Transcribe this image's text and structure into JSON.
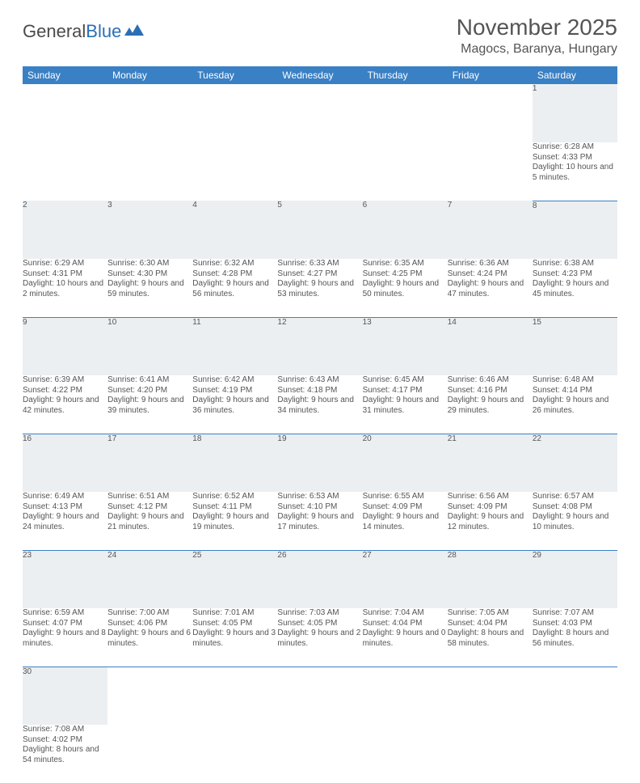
{
  "logo": {
    "text1": "General",
    "text2": "Blue"
  },
  "title": "November 2025",
  "location": "Magocs, Baranya, Hungary",
  "colors": {
    "header_bg": "#3a80c4",
    "header_fg": "#ffffff",
    "daynum_bg": "#eceff1",
    "rule": "#3a80c4",
    "text": "#555555",
    "logo_blue": "#2a6fb5"
  },
  "day_headers": [
    "Sunday",
    "Monday",
    "Tuesday",
    "Wednesday",
    "Thursday",
    "Friday",
    "Saturday"
  ],
  "weeks": [
    [
      null,
      null,
      null,
      null,
      null,
      null,
      {
        "n": "1",
        "sr": "6:28 AM",
        "ss": "4:33 PM",
        "dl": "10 hours and 5 minutes."
      }
    ],
    [
      {
        "n": "2",
        "sr": "6:29 AM",
        "ss": "4:31 PM",
        "dl": "10 hours and 2 minutes."
      },
      {
        "n": "3",
        "sr": "6:30 AM",
        "ss": "4:30 PM",
        "dl": "9 hours and 59 minutes."
      },
      {
        "n": "4",
        "sr": "6:32 AM",
        "ss": "4:28 PM",
        "dl": "9 hours and 56 minutes."
      },
      {
        "n": "5",
        "sr": "6:33 AM",
        "ss": "4:27 PM",
        "dl": "9 hours and 53 minutes."
      },
      {
        "n": "6",
        "sr": "6:35 AM",
        "ss": "4:25 PM",
        "dl": "9 hours and 50 minutes."
      },
      {
        "n": "7",
        "sr": "6:36 AM",
        "ss": "4:24 PM",
        "dl": "9 hours and 47 minutes."
      },
      {
        "n": "8",
        "sr": "6:38 AM",
        "ss": "4:23 PM",
        "dl": "9 hours and 45 minutes."
      }
    ],
    [
      {
        "n": "9",
        "sr": "6:39 AM",
        "ss": "4:22 PM",
        "dl": "9 hours and 42 minutes."
      },
      {
        "n": "10",
        "sr": "6:41 AM",
        "ss": "4:20 PM",
        "dl": "9 hours and 39 minutes."
      },
      {
        "n": "11",
        "sr": "6:42 AM",
        "ss": "4:19 PM",
        "dl": "9 hours and 36 minutes."
      },
      {
        "n": "12",
        "sr": "6:43 AM",
        "ss": "4:18 PM",
        "dl": "9 hours and 34 minutes."
      },
      {
        "n": "13",
        "sr": "6:45 AM",
        "ss": "4:17 PM",
        "dl": "9 hours and 31 minutes."
      },
      {
        "n": "14",
        "sr": "6:46 AM",
        "ss": "4:16 PM",
        "dl": "9 hours and 29 minutes."
      },
      {
        "n": "15",
        "sr": "6:48 AM",
        "ss": "4:14 PM",
        "dl": "9 hours and 26 minutes."
      }
    ],
    [
      {
        "n": "16",
        "sr": "6:49 AM",
        "ss": "4:13 PM",
        "dl": "9 hours and 24 minutes."
      },
      {
        "n": "17",
        "sr": "6:51 AM",
        "ss": "4:12 PM",
        "dl": "9 hours and 21 minutes."
      },
      {
        "n": "18",
        "sr": "6:52 AM",
        "ss": "4:11 PM",
        "dl": "9 hours and 19 minutes."
      },
      {
        "n": "19",
        "sr": "6:53 AM",
        "ss": "4:10 PM",
        "dl": "9 hours and 17 minutes."
      },
      {
        "n": "20",
        "sr": "6:55 AM",
        "ss": "4:09 PM",
        "dl": "9 hours and 14 minutes."
      },
      {
        "n": "21",
        "sr": "6:56 AM",
        "ss": "4:09 PM",
        "dl": "9 hours and 12 minutes."
      },
      {
        "n": "22",
        "sr": "6:57 AM",
        "ss": "4:08 PM",
        "dl": "9 hours and 10 minutes."
      }
    ],
    [
      {
        "n": "23",
        "sr": "6:59 AM",
        "ss": "4:07 PM",
        "dl": "9 hours and 8 minutes."
      },
      {
        "n": "24",
        "sr": "7:00 AM",
        "ss": "4:06 PM",
        "dl": "9 hours and 6 minutes."
      },
      {
        "n": "25",
        "sr": "7:01 AM",
        "ss": "4:05 PM",
        "dl": "9 hours and 3 minutes."
      },
      {
        "n": "26",
        "sr": "7:03 AM",
        "ss": "4:05 PM",
        "dl": "9 hours and 2 minutes."
      },
      {
        "n": "27",
        "sr": "7:04 AM",
        "ss": "4:04 PM",
        "dl": "9 hours and 0 minutes."
      },
      {
        "n": "28",
        "sr": "7:05 AM",
        "ss": "4:04 PM",
        "dl": "8 hours and 58 minutes."
      },
      {
        "n": "29",
        "sr": "7:07 AM",
        "ss": "4:03 PM",
        "dl": "8 hours and 56 minutes."
      }
    ],
    [
      {
        "n": "30",
        "sr": "7:08 AM",
        "ss": "4:02 PM",
        "dl": "8 hours and 54 minutes."
      },
      null,
      null,
      null,
      null,
      null,
      null
    ]
  ],
  "labels": {
    "sunrise": "Sunrise:",
    "sunset": "Sunset:",
    "daylight": "Daylight:"
  }
}
